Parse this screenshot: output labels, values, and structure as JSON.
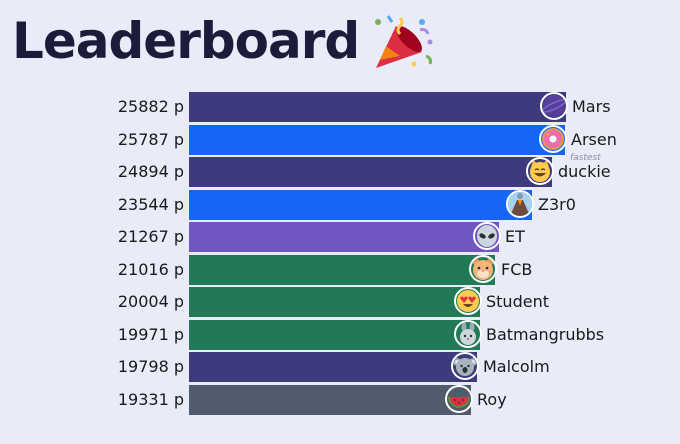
{
  "title": "Leaderboard",
  "title_icon": "party-popper-icon",
  "rows": [
    {
      "score": "25882 p",
      "name": "Mars",
      "avatar": "planet-avatar",
      "color": "#3d3a7e",
      "fraction": 1.0
    },
    {
      "score": "25787 p",
      "name": "Arsen",
      "avatar": "donut-avatar",
      "color": "#1666f5",
      "fraction": 0.9963,
      "badge": "fastest"
    },
    {
      "score": "24894 p",
      "name": "duckie",
      "avatar": "grinning-cat-avatar",
      "color": "#3d3a7e",
      "fraction": 0.9618
    },
    {
      "score": "23544 p",
      "name": "Z3r0",
      "avatar": "volcano-avatar",
      "color": "#1666f5",
      "fraction": 0.9097
    },
    {
      "score": "21267 p",
      "name": "ET",
      "avatar": "alien-avatar",
      "color": "#7155c0",
      "fraction": 0.8217
    },
    {
      "score": "21016 p",
      "name": "FCB",
      "avatar": "hamster-avatar",
      "color": "#217a55",
      "fraction": 0.812
    },
    {
      "score": "20004 p",
      "name": "Student",
      "avatar": "heart-eyes-avatar",
      "color": "#217a55",
      "fraction": 0.7729
    },
    {
      "score": "19971 p",
      "name": "Batmangrubbs",
      "avatar": "rabbit-avatar",
      "color": "#217a55",
      "fraction": 0.7716
    },
    {
      "score": "19798 p",
      "name": "Malcolm",
      "avatar": "koala-avatar",
      "color": "#3d3a7e",
      "fraction": 0.7649
    },
    {
      "score": "19331 p",
      "name": "Roy",
      "avatar": "watermelon-avatar",
      "color": "#525a6e",
      "fraction": 0.7469
    }
  ]
}
